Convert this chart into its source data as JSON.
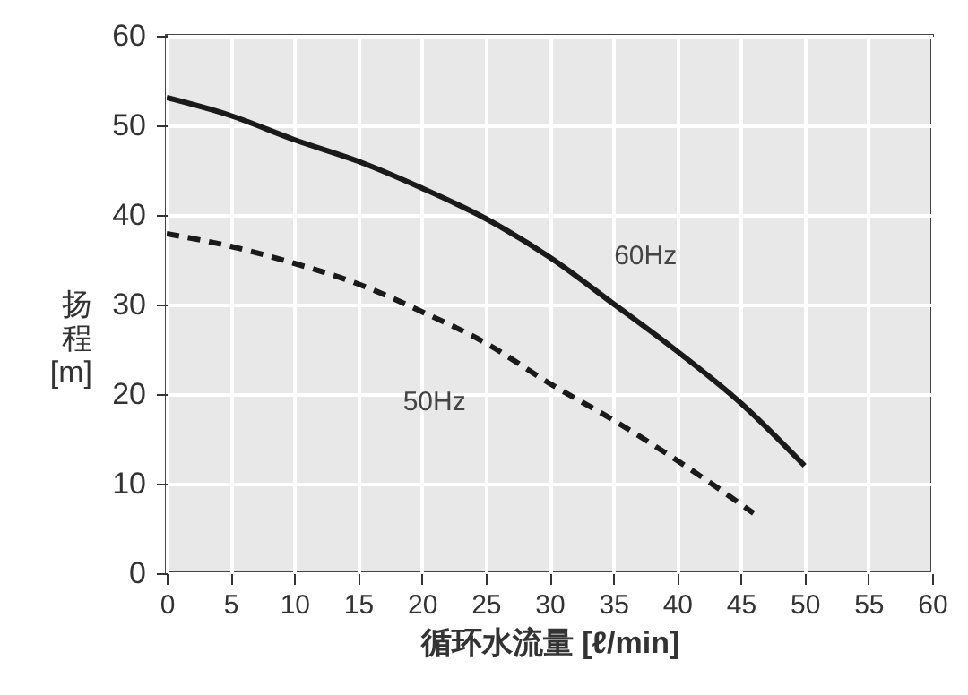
{
  "chart_data": {
    "type": "line",
    "xlabel": "循环水流量 [ℓ/min]",
    "ylabel": "扬程 [m]",
    "x": [
      0,
      5,
      10,
      15,
      20,
      25,
      30,
      35,
      40,
      45,
      50
    ],
    "series": [
      {
        "name": "60Hz",
        "color": "#1a1a1a",
        "line_style": "solid",
        "values": [
          53.1,
          51.1,
          48.4,
          46.0,
          43.0,
          39.6,
          35.3,
          30.1,
          24.8,
          19.0,
          12.0
        ]
      },
      {
        "name": "50Hz",
        "color": "#1a1a1a",
        "line_style": "dashed",
        "x": [
          0,
          5,
          10,
          15,
          20,
          25,
          30,
          35,
          40,
          46
        ],
        "values": [
          37.9,
          36.5,
          34.6,
          32.3,
          29.2,
          25.7,
          21.2,
          17.1,
          12.6,
          6.7
        ]
      }
    ],
    "xlim": [
      0,
      60
    ],
    "xticks": [
      0,
      5,
      10,
      15,
      20,
      25,
      30,
      35,
      40,
      45,
      50,
      55,
      60
    ],
    "ylim": [
      0,
      60
    ],
    "yticks": [
      0,
      10,
      20,
      30,
      40,
      50,
      60
    ],
    "grid": true,
    "legend": false
  }
}
